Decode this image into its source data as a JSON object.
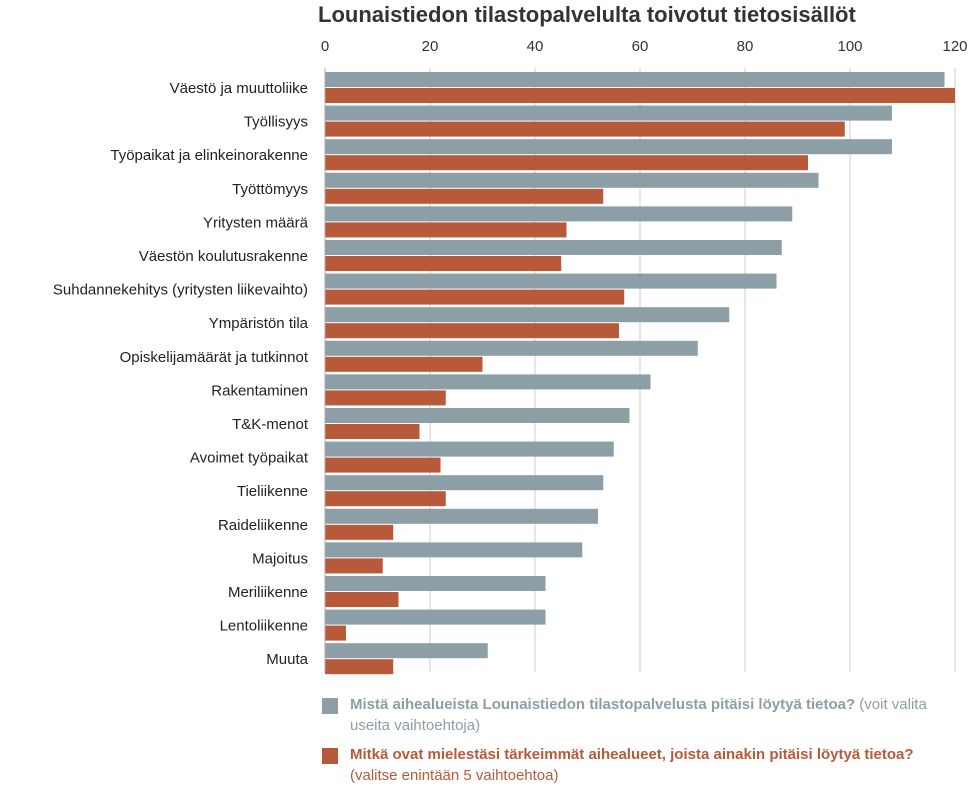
{
  "chart_data": {
    "type": "bar",
    "orientation": "horizontal",
    "title": "Lounaistiedon tilastopalvelulta toivotut tietosisällöt",
    "xlim": [
      0,
      120
    ],
    "xticks": [
      "0",
      "20",
      "40",
      "60",
      "80",
      "100",
      "120"
    ],
    "grid": true,
    "legend_position": "bottom",
    "categories": [
      "Väestö ja muuttoliike",
      "Työllisyys",
      "Työpaikat ja elinkeinorakenne",
      "Työttömyys",
      "Yritysten määrä",
      "Väestön koulutusrakenne",
      "Suhdannekehitys (yritysten liikevaihto)",
      "Ympäristön tila",
      "Opiskelijamäärät ja tutkinnot",
      "Rakentaminen",
      "T&K-menot",
      "Avoimet työpaikat",
      "Tieliikenne",
      "Raideliikenne",
      "Majoitus",
      "Meriliikenne",
      "Lentoliikenne",
      "Muuta"
    ],
    "series": [
      {
        "name": "Mistä aihealueista Lounaistiedon tilastopalvelusta pitäisi löytyä tietoa?",
        "name_note": "(voit valita useita vaihtoehtoja)",
        "color": "#8c9ea6",
        "values": [
          118,
          108,
          108,
          94,
          89,
          87,
          86,
          77,
          71,
          62,
          58,
          55,
          53,
          52,
          49,
          42,
          42,
          31
        ]
      },
      {
        "name": "Mitkä ovat mielestäsi tärkeimmät aihealueet, joista ainakin pitäisi löytyä tietoa?",
        "name_note": "(valitse enintään 5 vaihtoehtoa)",
        "color": "#b85a3a",
        "values": [
          120,
          99,
          92,
          53,
          46,
          45,
          57,
          56,
          30,
          23,
          18,
          22,
          23,
          13,
          11,
          14,
          4,
          13
        ]
      }
    ]
  },
  "colors": {
    "gridline": "#cccccc",
    "text": "#222222"
  }
}
